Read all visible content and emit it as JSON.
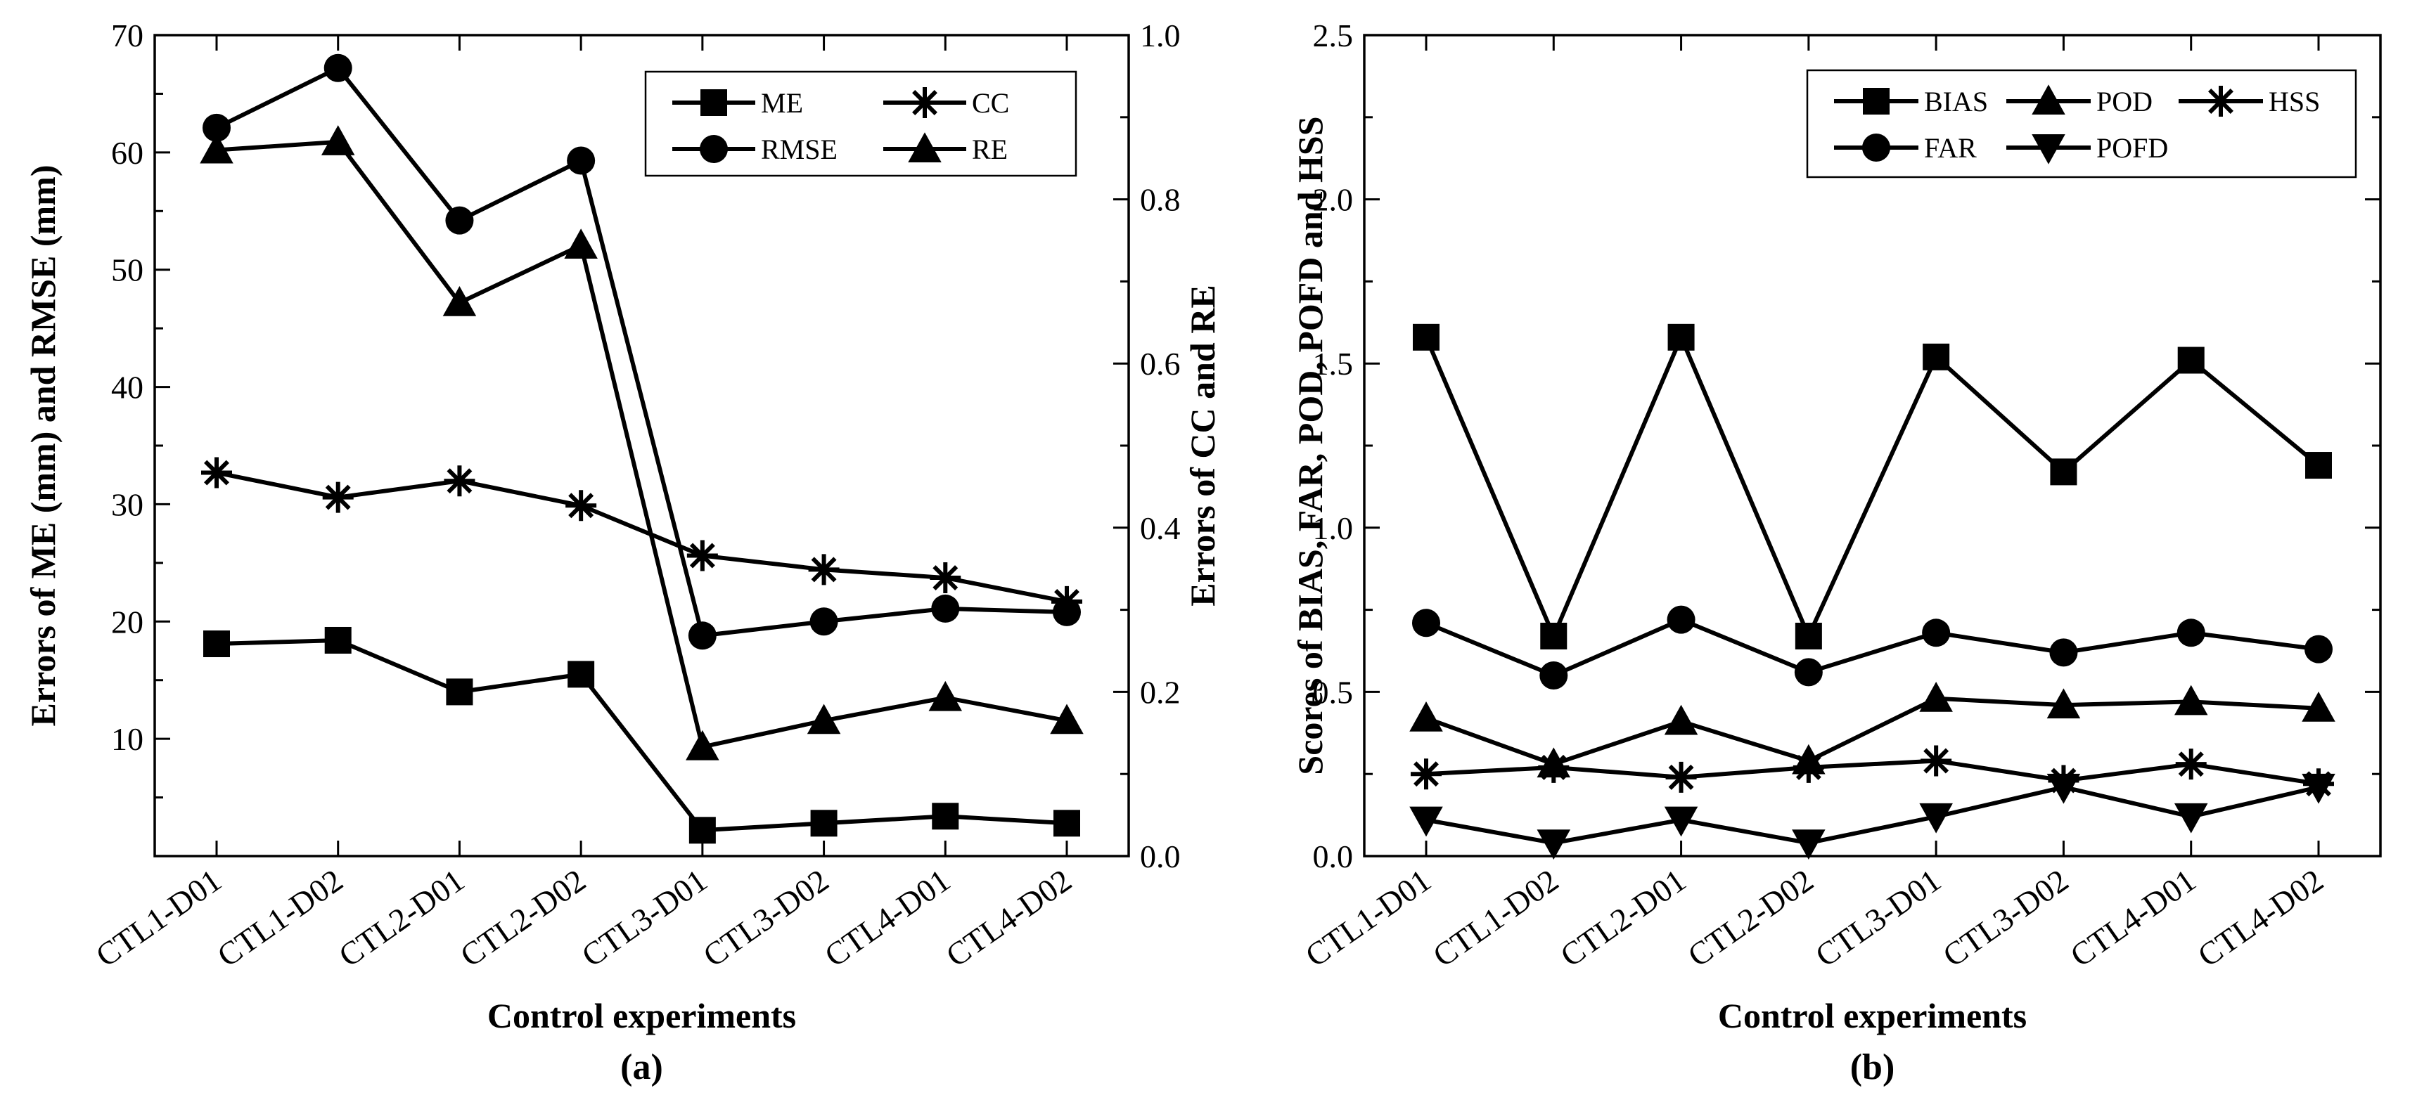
{
  "chart_data": [
    {
      "panel_label": "(a)",
      "type": "line",
      "xlabel": "Control experiments",
      "ylabel_left": "Errors of ME (mm) and RMSE (mm)",
      "ylabel_right": "Errors of  CC and RE",
      "categories": [
        "CTL1-D01",
        "CTL1-D02",
        "CTL2-D01",
        "CTL2-D02",
        "CTL3-D01",
        "CTL3-D02",
        "CTL4-D01",
        "CTL4-D02"
      ],
      "ylim_left": [
        0,
        70
      ],
      "yticks_left": [
        "10",
        "20",
        "30",
        "40",
        "50",
        "60",
        "70"
      ],
      "ylim_right": [
        0,
        1.0
      ],
      "yticks_right": [
        "0.0",
        "0.2",
        "0.4",
        "0.6",
        "0.8",
        "1.0"
      ],
      "legend_position": "top-right",
      "series": [
        {
          "name": "ME",
          "marker": "square",
          "axis": "left",
          "values": [
            18.1,
            18.4,
            14.0,
            15.5,
            2.2,
            2.8,
            3.4,
            2.8
          ]
        },
        {
          "name": "RMSE",
          "marker": "circle",
          "axis": "left",
          "values": [
            62.1,
            67.2,
            54.2,
            59.3,
            18.8,
            20.0,
            21.1,
            20.8
          ]
        },
        {
          "name": "CC",
          "marker": "asterisk",
          "axis": "right",
          "values": [
            0.467,
            0.437,
            0.457,
            0.427,
            0.366,
            0.349,
            0.339,
            0.31
          ]
        },
        {
          "name": "RE",
          "marker": "triangle-up",
          "axis": "right",
          "values": [
            0.86,
            0.87,
            0.674,
            0.744,
            0.133,
            0.165,
            0.193,
            0.165
          ]
        }
      ]
    },
    {
      "panel_label": "(b)",
      "type": "line",
      "xlabel": "Control experiments",
      "ylabel": "Scores of BIAS, FAR, POD, POFD and HSS",
      "categories": [
        "CTL1-D01",
        "CTL1-D02",
        "CTL2-D01",
        "CTL2-D02",
        "CTL3-D01",
        "CTL3-D02",
        "CTL4-D01",
        "CTL4-D02"
      ],
      "ylim": [
        0,
        2.5
      ],
      "yticks": [
        "0.0",
        "0.5",
        "1.0",
        "1.5",
        "2.0",
        "2.5"
      ],
      "legend_position": "top-right",
      "series": [
        {
          "name": "BIAS",
          "marker": "square",
          "values": [
            1.58,
            0.67,
            1.58,
            0.67,
            1.52,
            1.17,
            1.51,
            1.19
          ]
        },
        {
          "name": "FAR",
          "marker": "circle",
          "values": [
            0.71,
            0.55,
            0.72,
            0.56,
            0.68,
            0.62,
            0.68,
            0.63
          ]
        },
        {
          "name": "POD",
          "marker": "triangle-up",
          "values": [
            0.42,
            0.28,
            0.41,
            0.29,
            0.48,
            0.46,
            0.47,
            0.45
          ]
        },
        {
          "name": "POFD",
          "marker": "triangle-down",
          "values": [
            0.11,
            0.04,
            0.11,
            0.04,
            0.12,
            0.21,
            0.12,
            0.21
          ]
        },
        {
          "name": "HSS",
          "marker": "asterisk",
          "values": [
            0.25,
            0.27,
            0.24,
            0.27,
            0.29,
            0.23,
            0.28,
            0.22
          ]
        }
      ]
    }
  ]
}
